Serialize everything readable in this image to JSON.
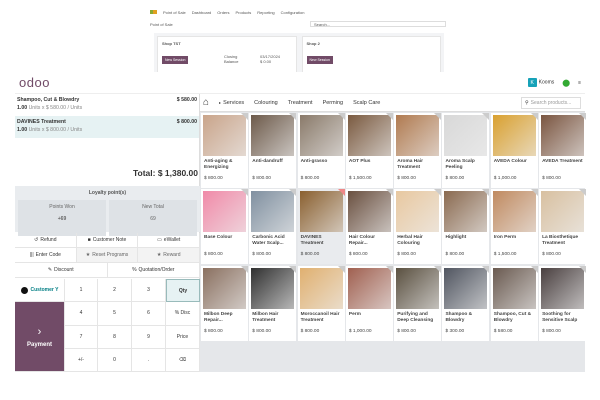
{
  "backend": {
    "app": "Point of Sale",
    "menu": [
      "Dashboard",
      "Orders",
      "Products",
      "Reporting",
      "Configuration"
    ],
    "breadcrumb": "Point of Sale",
    "search_placeholder": "Search...",
    "shops": [
      {
        "name": "Shop TST",
        "button": "New Session",
        "closing_label": "Closing",
        "closing_value": "03/17/2024",
        "balance_label": "Balance",
        "balance_value": "$ 0.00"
      },
      {
        "name": "Shop 2",
        "button": "New Session"
      }
    ]
  },
  "header": {
    "logo": "odoo",
    "user_initial": "K",
    "user": "Kooms"
  },
  "order": {
    "lines": [
      {
        "name": "Shampoo, Cut & Blowdry",
        "price": "$ 580.00",
        "qty": "1.00",
        "detail": "Units x $ 580.00 / Units"
      },
      {
        "name": "DAVINES Treatment",
        "price": "$ 800.00",
        "qty": "1.00",
        "detail": "Units x $ 800.00 / Units"
      }
    ],
    "total": "Total: $ 1,380.00",
    "loyalty": {
      "title": "Loyalty point(s)",
      "won_label": "Points Won",
      "won_value": "+69",
      "total_label": "New Total",
      "total_value": "69"
    }
  },
  "controls": {
    "row1": [
      "Refund",
      "Customer Note",
      "eWallet"
    ],
    "row2": [
      "Enter Code",
      "Reset Programs",
      "Reward"
    ],
    "row3": [
      "Discount",
      "Quotation/Order"
    ]
  },
  "numpad": {
    "customer": "Customer Y",
    "payment": "Payment",
    "keys": [
      "1",
      "2",
      "3",
      "Qty",
      "4",
      "5",
      "6",
      "% Disc",
      "7",
      "8",
      "9",
      "Price",
      "+/-",
      "0",
      ".",
      "⌫"
    ]
  },
  "categories": [
    "Services",
    "Colouring",
    "Treatment",
    "Perming",
    "Scalp Care"
  ],
  "search_placeholder": "Search products...",
  "products": [
    {
      "name": "Anti-aging & Energizing",
      "price": "$ 800.00"
    },
    {
      "name": "Anti-dandruff",
      "price": "$ 800.00"
    },
    {
      "name": "Anti-grasso",
      "price": "$ 800.00"
    },
    {
      "name": "AOT Plus",
      "price": "$ 1,500.00"
    },
    {
      "name": "Aroma Hair Treatment",
      "price": "$ 800.00"
    },
    {
      "name": "Aroma Scalp Peeling",
      "price": "$ 800.00"
    },
    {
      "name": "AVEDA Colour",
      "price": "$ 1,000.00"
    },
    {
      "name": "AVEDA Treatment",
      "price": "$ 800.00"
    },
    {
      "name": "Base Colour",
      "price": "$ 800.00"
    },
    {
      "name": "Carbonic Acid Water Scalp...",
      "price": "$ 800.00"
    },
    {
      "name": "DAVINES Treatment",
      "price": "$ 800.00"
    },
    {
      "name": "Hair Colour Repair...",
      "price": "$ 800.00"
    },
    {
      "name": "Herbal Hair Colouring",
      "price": "$ 800.00"
    },
    {
      "name": "Highlight",
      "price": "$ 800.00"
    },
    {
      "name": "Iron Perm",
      "price": "$ 1,500.00"
    },
    {
      "name": "La Biosthetique Treatment",
      "price": "$ 800.00"
    },
    {
      "name": "Milbon Deep Repair...",
      "price": "$ 800.00"
    },
    {
      "name": "Milbon Hair Treatment",
      "price": "$ 800.00"
    },
    {
      "name": "Moroccanoil Hair Treatment",
      "price": "$ 800.00"
    },
    {
      "name": "Perm",
      "price": "$ 1,000.00"
    },
    {
      "name": "Purifying and Deep Cleansing",
      "price": "$ 800.00"
    },
    {
      "name": "Shampoo & Blowdry",
      "price": "$ 300.00"
    },
    {
      "name": "Shampoo, Cut & Blowdry",
      "price": "$ 580.00"
    },
    {
      "name": "Soothing for Sensitive Scalp",
      "price": "$ 800.00"
    }
  ],
  "colors": {
    "brand": "#714b67",
    "accent": "#017e84"
  }
}
